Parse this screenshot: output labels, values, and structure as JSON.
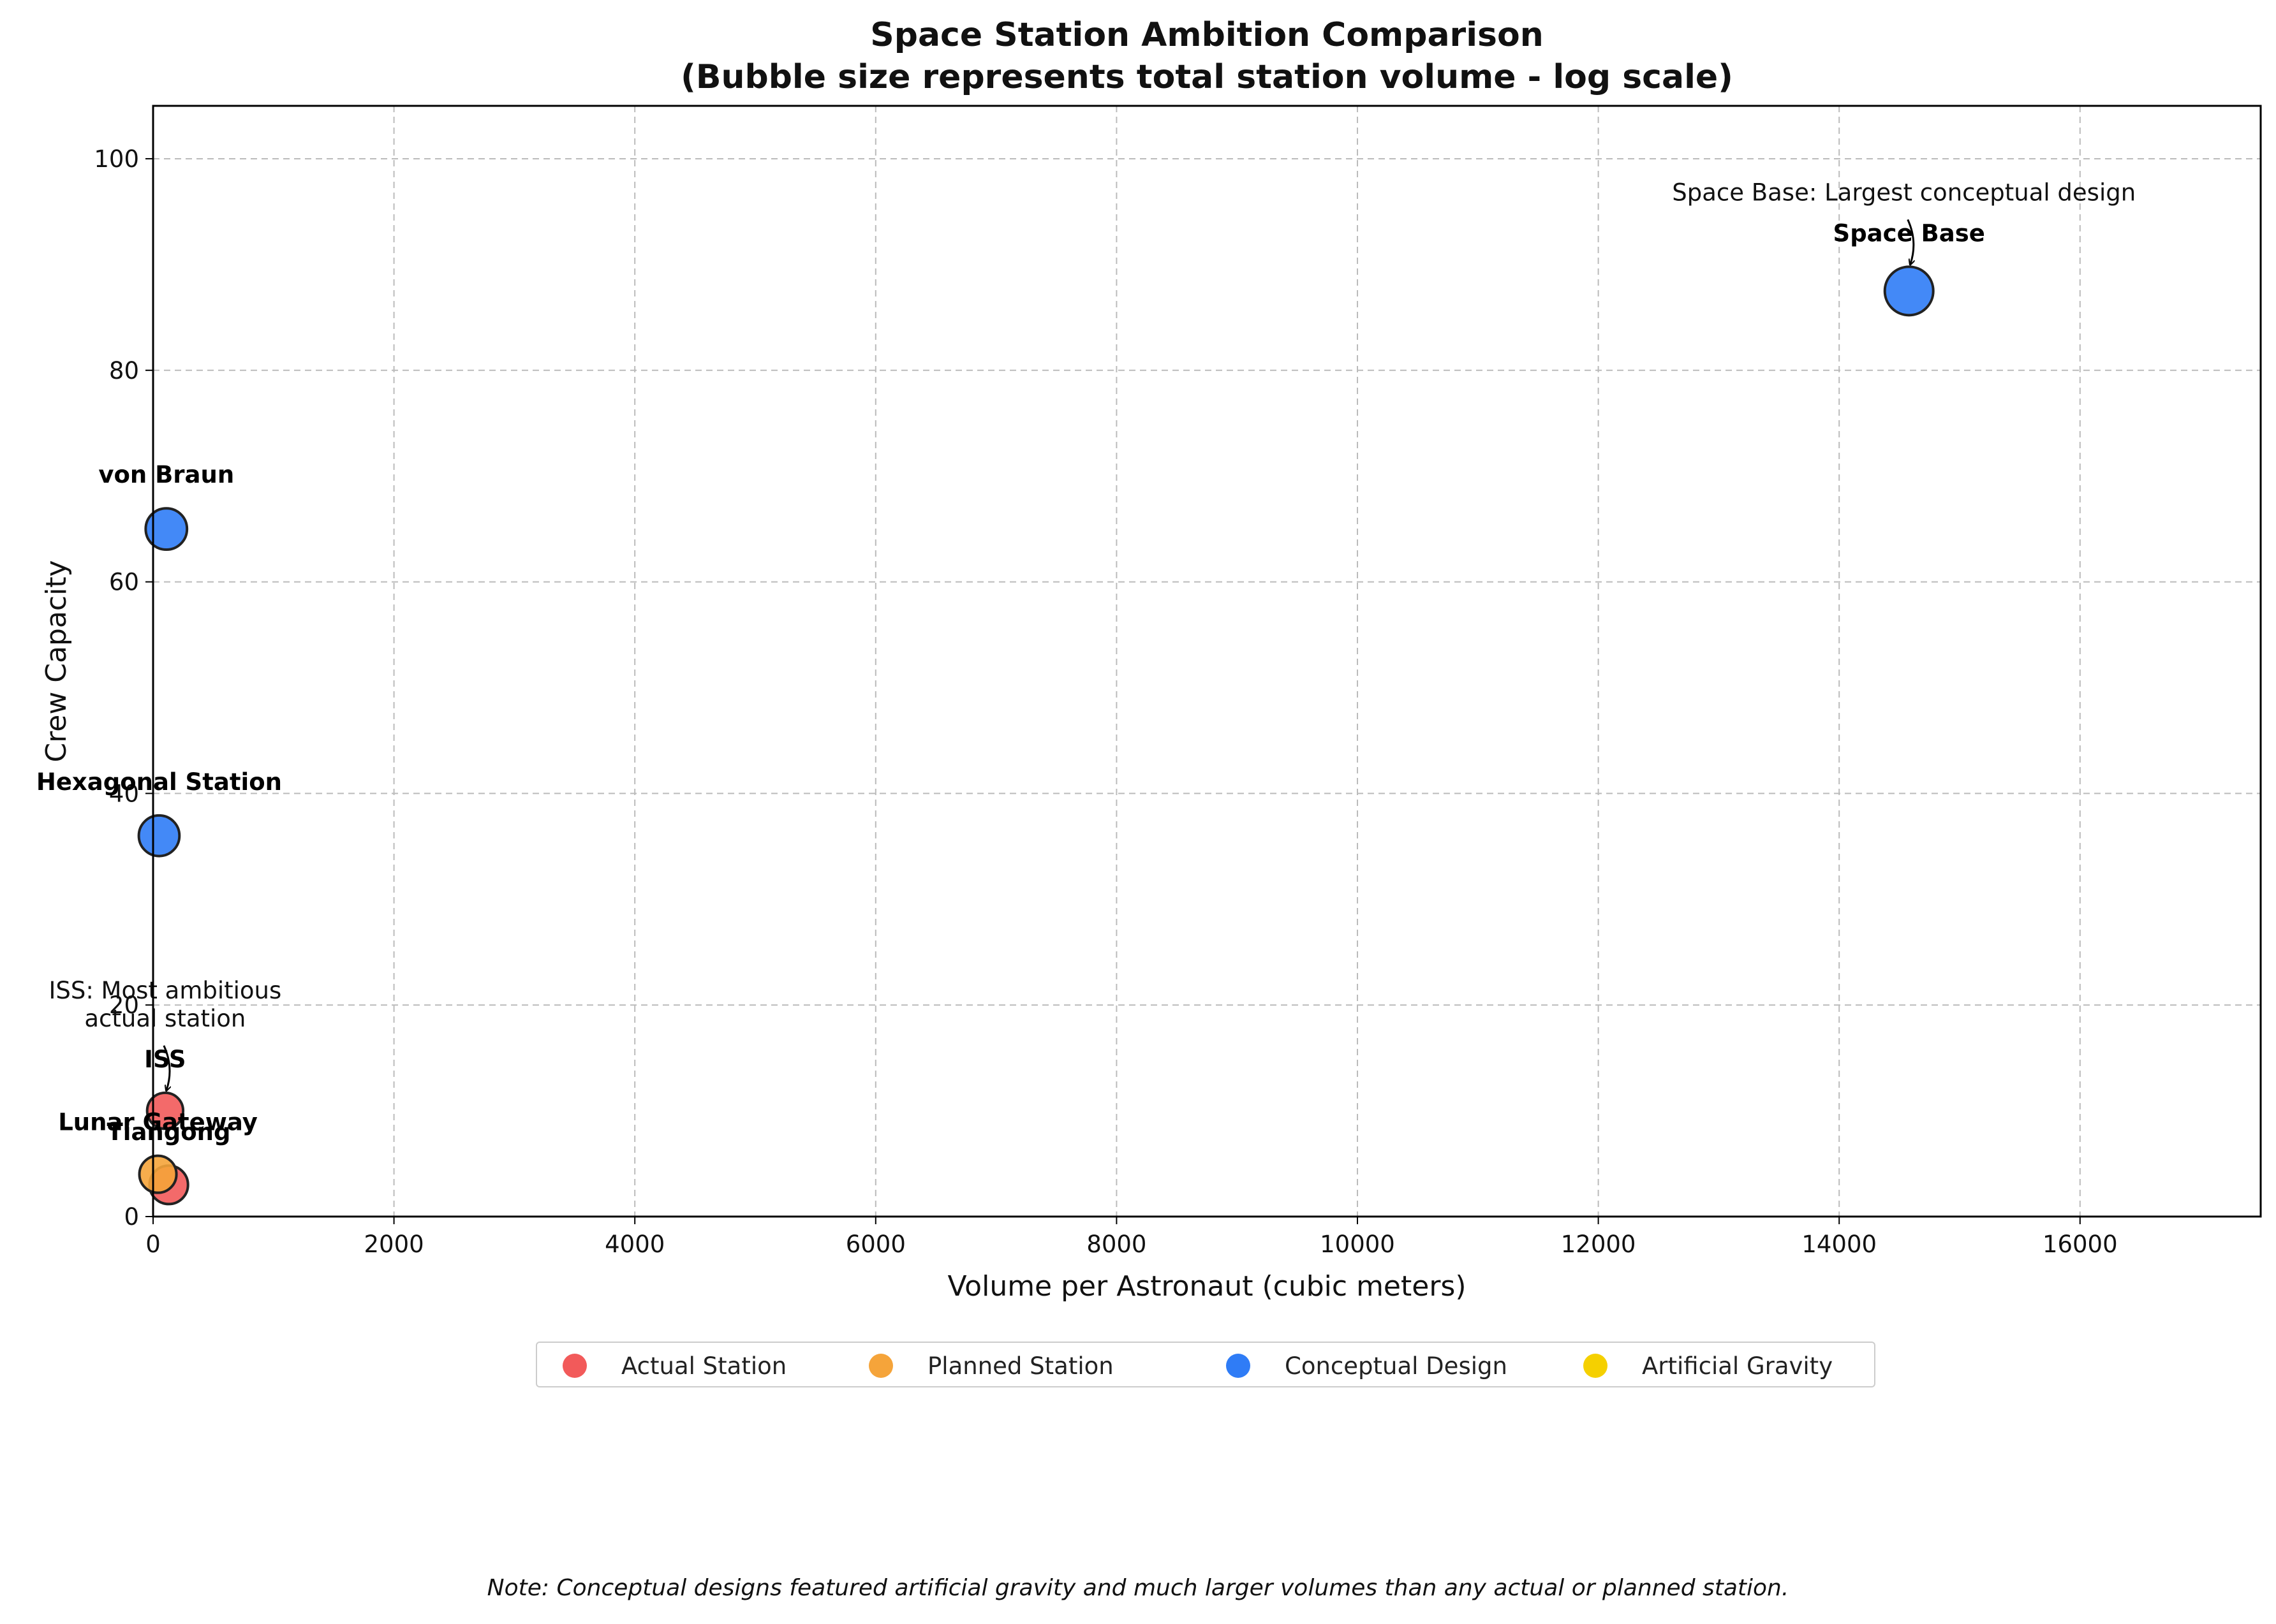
{
  "chart_data": {
    "type": "scatter",
    "title": "Space Station Ambition Comparison",
    "subtitle": "(Bubble size represents total station volume - log scale)",
    "xlabel": "Volume per Astronaut (cubic meters)",
    "ylabel": "Crew Capacity",
    "xlim": [
      0,
      17500
    ],
    "ylim": [
      0,
      105
    ],
    "xticks": [
      0,
      2000,
      4000,
      6000,
      8000,
      10000,
      12000,
      14000,
      16000
    ],
    "yticks": [
      0,
      20,
      40,
      60,
      80,
      100
    ],
    "grid": true,
    "legend_placement": "below-plot",
    "categories": [
      {
        "name": "Actual Station",
        "color": "#f25a5a"
      },
      {
        "name": "Planned Station",
        "color": "#f5a43a"
      },
      {
        "name": "Conceptual Design",
        "color": "#2f7cf6"
      },
      {
        "name": "Artificial Gravity",
        "color": "#f5d000"
      }
    ],
    "points": [
      {
        "label": "Space Base",
        "x": 14580,
        "y": 87.5,
        "category": "Conceptual Design",
        "size": 1.0
      },
      {
        "label": "von Braun",
        "x": 110,
        "y": 65,
        "category": "Conceptual Design",
        "size": 0.8
      },
      {
        "label": "Hexagonal Station",
        "x": 50,
        "y": 36,
        "category": "Conceptual Design",
        "size": 0.78
      },
      {
        "label": "ISS",
        "x": 100,
        "y": 10,
        "category": "Actual Station",
        "size": 0.65
      },
      {
        "label": "Tiangong",
        "x": 130,
        "y": 3,
        "category": "Actual Station",
        "size": 0.72
      },
      {
        "label": "Lunar Gateway",
        "x": 40,
        "y": 4,
        "category": "Planned Station",
        "size": 0.68
      }
    ],
    "annotations": [
      {
        "text": "Space Base: Largest conceptual design",
        "target": "Space Base"
      },
      {
        "text": "ISS: Most ambitious\nactual station",
        "target": "ISS"
      }
    ]
  },
  "note": "Note: Conceptual designs featured artificial gravity and much larger volumes than any actual or planned station."
}
